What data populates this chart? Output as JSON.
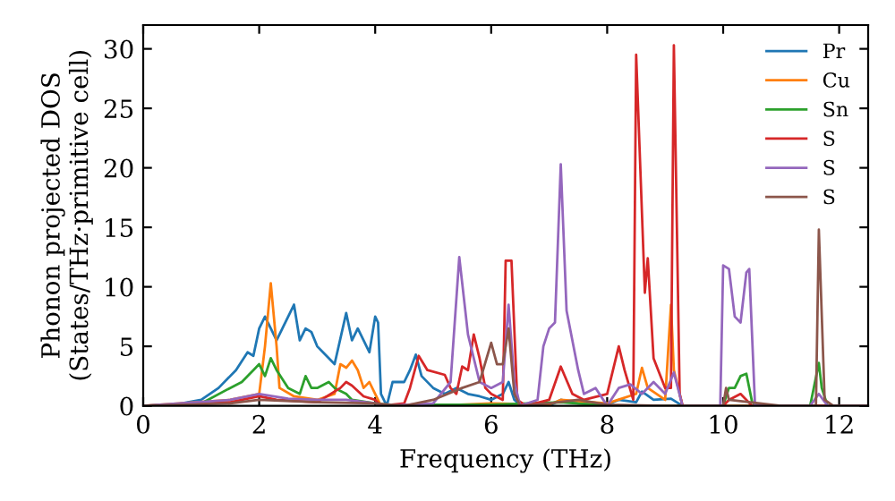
{
  "chart_data": {
    "type": "line",
    "xlabel": "Frequency (THz)",
    "ylabel": "Phonon projected DOS\n(States/THz·primitive cell)",
    "xlim": [
      0,
      12.5
    ],
    "ylim": [
      0,
      32
    ],
    "xticks": [
      0,
      2,
      4,
      6,
      8,
      10,
      12
    ],
    "yticks": [
      0,
      5,
      10,
      15,
      20,
      25,
      30
    ],
    "legend": "top right",
    "grid": false,
    "series": [
      {
        "name": "Pr",
        "color": "#1f77b4",
        "x": [
          0,
          0.5,
          1,
          1.3,
          1.6,
          1.8,
          1.9,
          2.0,
          2.1,
          2.2,
          2.3,
          2.4,
          2.6,
          2.7,
          2.8,
          2.9,
          3.0,
          3.1,
          3.3,
          3.5,
          3.6,
          3.7,
          3.8,
          3.9,
          4.0,
          4.05,
          4.1,
          4.2,
          4.3,
          4.5,
          4.6,
          4.7,
          4.8,
          5.0,
          5.2,
          5.4,
          5.6,
          5.8,
          6.0,
          6.2,
          6.3,
          6.4,
          6.5,
          7,
          7.2,
          7.5,
          8,
          8.2,
          8.5,
          8.6,
          8.8,
          9.1,
          9.3,
          10,
          12.5
        ],
        "values": [
          0,
          0.05,
          0.5,
          1.5,
          3,
          4.5,
          4.2,
          6.5,
          7.5,
          6.5,
          5.5,
          6.5,
          8.5,
          5.5,
          6.5,
          6.2,
          5,
          4.5,
          3.5,
          7.8,
          5.5,
          6.5,
          5.5,
          4.5,
          7.5,
          7,
          1,
          0,
          2,
          2,
          3,
          4.3,
          2.5,
          1.5,
          1,
          1.5,
          1,
          0.8,
          0.5,
          1,
          2,
          0.5,
          0.1,
          0,
          0.5,
          0.2,
          0.1,
          0.5,
          0.3,
          1.2,
          0.5,
          0.6,
          0,
          0,
          0
        ]
      },
      {
        "name": "Cu",
        "color": "#ff7f0e",
        "x": [
          0,
          1.5,
          2.0,
          2.1,
          2.2,
          2.3,
          2.35,
          2.6,
          3.0,
          3.3,
          3.4,
          3.5,
          3.6,
          3.7,
          3.8,
          3.9,
          4.0,
          4.1,
          5,
          6,
          7,
          7.2,
          8,
          8.5,
          8.6,
          8.7,
          9.0,
          9.1,
          9.15,
          9.3,
          12.5
        ],
        "values": [
          0,
          0.5,
          1,
          5,
          10.3,
          5,
          1.5,
          0.8,
          0.5,
          1,
          3.5,
          3.2,
          3.8,
          3,
          1.5,
          2,
          1,
          0,
          0,
          0.2,
          0.1,
          0.5,
          0.2,
          1,
          3.2,
          1.5,
          0.5,
          8.5,
          3,
          0,
          0
        ]
      },
      {
        "name": "Sn",
        "color": "#2ca02c",
        "x": [
          0,
          1.0,
          1.5,
          1.7,
          1.9,
          2.0,
          2.1,
          2.2,
          2.3,
          2.5,
          2.7,
          2.8,
          2.9,
          3.0,
          3.2,
          3.3,
          3.5,
          3.6,
          4.0,
          4.2,
          5,
          6,
          7.2,
          8,
          9,
          10,
          10.1,
          10.2,
          10.3,
          10.4,
          10.5,
          10.6,
          11.5,
          11.65,
          11.7,
          11.8,
          12.5
        ],
        "values": [
          0,
          0.2,
          1.5,
          2,
          3,
          3.5,
          2.5,
          4,
          3,
          1.5,
          1,
          2.5,
          1.5,
          1.5,
          2,
          1.5,
          1,
          0.5,
          0.2,
          0.1,
          0.1,
          0.1,
          0.3,
          0,
          0,
          0,
          1.5,
          1.5,
          2.5,
          2.7,
          0.3,
          0,
          0,
          3.6,
          1.5,
          0,
          0
        ]
      },
      {
        "name": "S",
        "color": "#d62728",
        "x": [
          0,
          1.5,
          2,
          2.3,
          3,
          3.4,
          3.5,
          3.6,
          3.8,
          4.0,
          4.1,
          4.5,
          4.6,
          4.75,
          4.9,
          5.2,
          5.3,
          5.4,
          5.5,
          5.6,
          5.7,
          5.8,
          5.9,
          6.0,
          6.2,
          6.25,
          6.35,
          6.45,
          6.6,
          7,
          7.2,
          7.4,
          7.6,
          8,
          8.2,
          8.3,
          8.45,
          8.5,
          8.65,
          8.7,
          8.8,
          9.0,
          9.1,
          9.15,
          9.25,
          9.3,
          10,
          10.1,
          10.3,
          10.5,
          12.5
        ],
        "values": [
          0,
          0.3,
          0.8,
          0.5,
          0.3,
          1.5,
          2,
          1.7,
          0.8,
          0.5,
          0,
          0.2,
          1.5,
          4.2,
          3,
          2.6,
          1.5,
          1,
          3.3,
          3,
          6,
          4,
          1.5,
          1,
          0.5,
          12.2,
          12.2,
          0.5,
          0,
          0.5,
          3.3,
          1,
          0.5,
          1,
          5,
          3,
          0.5,
          29.5,
          9.5,
          12.4,
          4,
          1.5,
          1.5,
          30.3,
          1,
          0,
          0,
          0.5,
          1,
          0,
          0
        ]
      },
      {
        "name": "S",
        "color": "#9467bd",
        "x": [
          0,
          1.5,
          2,
          2.5,
          3,
          3.5,
          4,
          4.2,
          5,
          5.3,
          5.45,
          5.6,
          5.8,
          6.0,
          6.2,
          6.3,
          6.4,
          6.5,
          6.8,
          6.9,
          7.0,
          7.1,
          7.2,
          7.3,
          7.5,
          7.6,
          7.8,
          8,
          8.2,
          8.4,
          8.6,
          8.8,
          9.0,
          9.15,
          9.3,
          9.95,
          10.0,
          10.1,
          10.2,
          10.3,
          10.4,
          10.45,
          10.55,
          11.5,
          11.65,
          11.8,
          12.5
        ],
        "values": [
          0,
          0.5,
          1,
          0.6,
          0.5,
          0.5,
          0.2,
          0,
          0.2,
          2,
          12.5,
          6,
          2,
          1.5,
          2,
          8.5,
          2,
          0,
          0.5,
          5,
          6.5,
          7,
          20.3,
          8,
          3,
          1,
          1.5,
          0,
          1.5,
          1.8,
          1,
          2,
          1,
          2.8,
          0,
          0,
          11.8,
          11.5,
          7.5,
          7.0,
          11.2,
          11.5,
          0,
          0,
          1,
          0,
          0
        ]
      },
      {
        "name": "S",
        "color": "#8c564b",
        "x": [
          0,
          1.5,
          2,
          3,
          4,
          4.5,
          5,
          5.5,
          5.8,
          6.0,
          6.1,
          6.2,
          6.3,
          6.4,
          6.5,
          7,
          7.5,
          8,
          9,
          10,
          10.05,
          10.1,
          11,
          11.6,
          11.65,
          11.75,
          11.9,
          12.5
        ],
        "values": [
          0,
          0.2,
          0.5,
          0.3,
          0.2,
          0,
          0.5,
          1.5,
          2,
          5.3,
          3.5,
          3.5,
          6.5,
          1,
          0,
          0.2,
          0.5,
          0.1,
          0,
          0,
          1.5,
          0.5,
          0,
          0,
          14.8,
          0.5,
          0,
          0
        ]
      }
    ]
  }
}
